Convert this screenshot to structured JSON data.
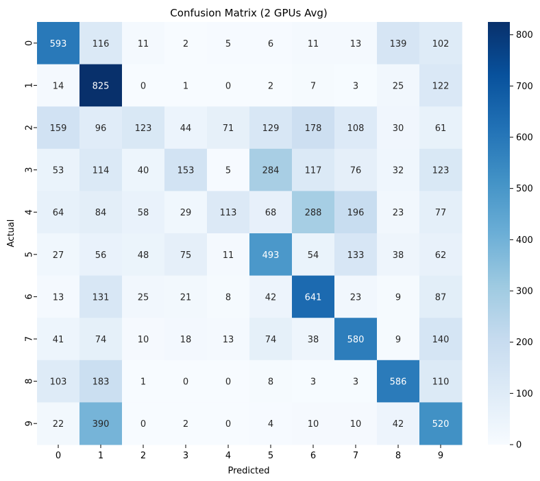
{
  "chart_data": {
    "type": "heatmap",
    "title": "Confusion Matrix (2 GPUs Avg)",
    "xlabel": "Predicted",
    "ylabel": "Actual",
    "x_categories": [
      "0",
      "1",
      "2",
      "3",
      "4",
      "5",
      "6",
      "7",
      "8",
      "9"
    ],
    "y_categories": [
      "0",
      "1",
      "2",
      "3",
      "4",
      "5",
      "6",
      "7",
      "8",
      "9"
    ],
    "values": [
      [
        593,
        116,
        11,
        2,
        5,
        6,
        11,
        13,
        139,
        102
      ],
      [
        14,
        825,
        0,
        1,
        0,
        2,
        7,
        3,
        25,
        122
      ],
      [
        159,
        96,
        123,
        44,
        71,
        129,
        178,
        108,
        30,
        61
      ],
      [
        53,
        114,
        40,
        153,
        5,
        284,
        117,
        76,
        32,
        123
      ],
      [
        64,
        84,
        58,
        29,
        113,
        68,
        288,
        196,
        23,
        77
      ],
      [
        27,
        56,
        48,
        75,
        11,
        493,
        54,
        133,
        38,
        62
      ],
      [
        13,
        131,
        25,
        21,
        8,
        42,
        641,
        23,
        9,
        87
      ],
      [
        41,
        74,
        10,
        18,
        13,
        74,
        38,
        580,
        9,
        140
      ],
      [
        103,
        183,
        1,
        0,
        0,
        8,
        3,
        3,
        586,
        110
      ],
      [
        22,
        390,
        0,
        2,
        0,
        4,
        10,
        10,
        42,
        520
      ]
    ],
    "colormap": "Blues",
    "value_range": [
      0,
      825
    ],
    "colorbar_ticks": [
      "0",
      "100",
      "200",
      "300",
      "400",
      "500",
      "600",
      "700",
      "800"
    ],
    "annotations": true,
    "grid": false
  }
}
